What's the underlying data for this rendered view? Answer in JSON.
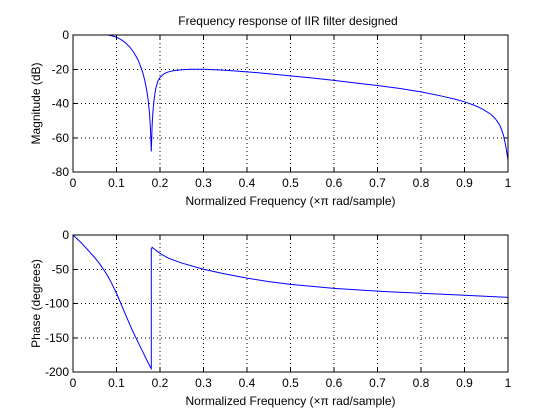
{
  "figure": {
    "title": "Frequency response of IIR filter designed"
  },
  "colors": {
    "series": "#0000ff",
    "axes": "#000000",
    "background": "#ffffff"
  },
  "chart_data": [
    {
      "type": "line",
      "title": "Frequency response of IIR filter designed",
      "xlabel": "Normalized Frequency  (×π rad/sample)",
      "ylabel": "Magnitude (dB)",
      "xlim": [
        0,
        1
      ],
      "ylim": [
        -80,
        0
      ],
      "xticks": [
        0,
        0.1,
        0.2,
        0.3,
        0.4,
        0.5,
        0.6,
        0.7,
        0.8,
        0.9,
        1
      ],
      "xtick_labels": [
        "0",
        "0.1",
        "0.2",
        "0.3",
        "0.4",
        "0.5",
        "0.6",
        "0.7",
        "0.8",
        "0.9",
        "1"
      ],
      "yticks": [
        -80,
        -60,
        -40,
        -20,
        0
      ],
      "ytick_labels": [
        "-80",
        "-60",
        "-40",
        "-20",
        "0"
      ],
      "grid": true,
      "series": [
        {
          "color": "#0000ff",
          "x": [
            0.08,
            0.09,
            0.1,
            0.11,
            0.12,
            0.13,
            0.14,
            0.15,
            0.16,
            0.165,
            0.17,
            0.173,
            0.176,
            0.178,
            0.18,
            0.182,
            0.184,
            0.187,
            0.19,
            0.195,
            0.2,
            0.21,
            0.22,
            0.23,
            0.25,
            0.27,
            0.3,
            0.35,
            0.4,
            0.45,
            0.5,
            0.55,
            0.6,
            0.65,
            0.7,
            0.75,
            0.8,
            0.85,
            0.88,
            0.9,
            0.92,
            0.94,
            0.96,
            0.97,
            0.98,
            0.985,
            0.99,
            0.995,
            1.0
          ],
          "y": [
            0.0,
            -0.5,
            -1.3,
            -2.6,
            -4.4,
            -6.9,
            -10.2,
            -14.8,
            -21.5,
            -26.5,
            -33.0,
            -38.5,
            -46.0,
            -54.5,
            -68.0,
            -52.0,
            -44.0,
            -36.5,
            -31.5,
            -27.0,
            -24.8,
            -22.5,
            -21.5,
            -20.9,
            -20.3,
            -20.0,
            -20.0,
            -20.6,
            -21.5,
            -22.6,
            -23.9,
            -25.1,
            -26.5,
            -28.0,
            -29.5,
            -31.2,
            -33.2,
            -35.8,
            -37.6,
            -39.0,
            -40.8,
            -43.0,
            -46.2,
            -48.6,
            -52.2,
            -55.0,
            -59.0,
            -65.0,
            -73.0
          ]
        }
      ]
    },
    {
      "type": "line",
      "title": "",
      "xlabel": "Normalized Frequency  (×π rad/sample)",
      "ylabel": "Phase (degrees)",
      "xlim": [
        0,
        1
      ],
      "ylim": [
        -200,
        0
      ],
      "xticks": [
        0,
        0.1,
        0.2,
        0.3,
        0.4,
        0.5,
        0.6,
        0.7,
        0.8,
        0.9,
        1
      ],
      "xtick_labels": [
        "0",
        "0.1",
        "0.2",
        "0.3",
        "0.4",
        "0.5",
        "0.6",
        "0.7",
        "0.8",
        "0.9",
        "1"
      ],
      "yticks": [
        -200,
        -150,
        -100,
        -50,
        0
      ],
      "ytick_labels": [
        "-200",
        "-150",
        "-100",
        "-50",
        "0"
      ],
      "grid": true,
      "series": [
        {
          "color": "#0000ff",
          "x": [
            0.0,
            0.01,
            0.02,
            0.03,
            0.04,
            0.05,
            0.06,
            0.07,
            0.08,
            0.09,
            0.1,
            0.11,
            0.12,
            0.13,
            0.14,
            0.15,
            0.16,
            0.17,
            0.178,
            0.18,
            0.18,
            0.182,
            0.19,
            0.2,
            0.22,
            0.25,
            0.3,
            0.35,
            0.4,
            0.45,
            0.5,
            0.55,
            0.6,
            0.7,
            0.8,
            0.9,
            1.0
          ],
          "y": [
            0,
            -6,
            -12,
            -19,
            -26,
            -33,
            -41,
            -50,
            -60,
            -72,
            -85,
            -100,
            -115,
            -130,
            -144,
            -157,
            -170,
            -183,
            -193,
            -195,
            -20,
            -18,
            -22,
            -27,
            -34,
            -41,
            -50,
            -57,
            -63,
            -68,
            -72,
            -75,
            -78,
            -82,
            -85,
            -88,
            -91
          ]
        }
      ]
    }
  ]
}
